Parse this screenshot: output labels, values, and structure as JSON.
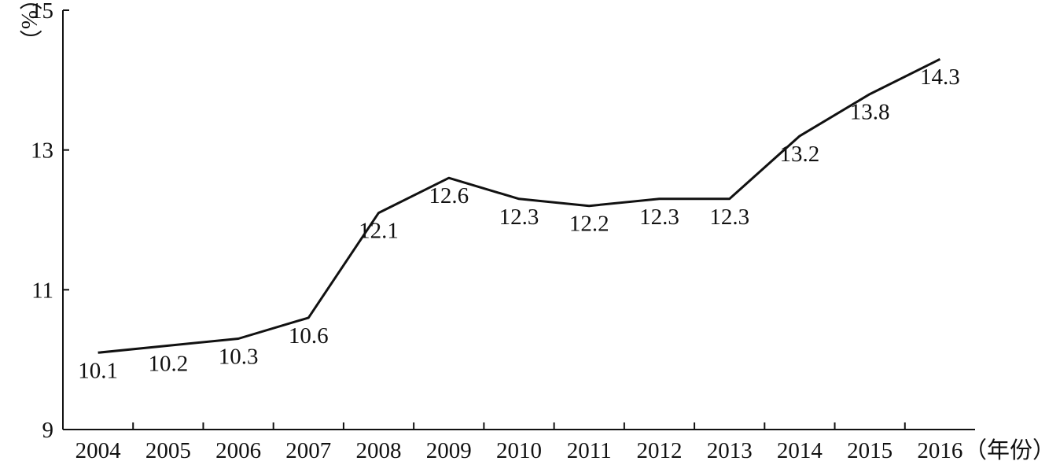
{
  "chart_data": {
    "type": "line",
    "title": "",
    "xlabel": "（年份）",
    "ylabel": "（%）",
    "categories": [
      "2004",
      "2005",
      "2006",
      "2007",
      "2008",
      "2009",
      "2010",
      "2011",
      "2012",
      "2013",
      "2014",
      "2015",
      "2016"
    ],
    "series": [
      {
        "values": [
          10.1,
          10.2,
          10.3,
          10.6,
          12.1,
          12.6,
          12.3,
          12.2,
          12.3,
          12.3,
          13.2,
          13.8,
          14.3
        ]
      }
    ],
    "data_labels": [
      "10.1",
      "10.2",
      "10.3",
      "10.6",
      "12.1",
      "12.6",
      "12.3",
      "12.2",
      "12.3",
      "12.3",
      "13.2",
      "13.8",
      "14.3"
    ],
    "yticks": [
      "9",
      "11",
      "13",
      "15"
    ],
    "ylim": [
      9,
      15
    ],
    "grid": false,
    "legend": "none",
    "line_color": "#111111"
  }
}
